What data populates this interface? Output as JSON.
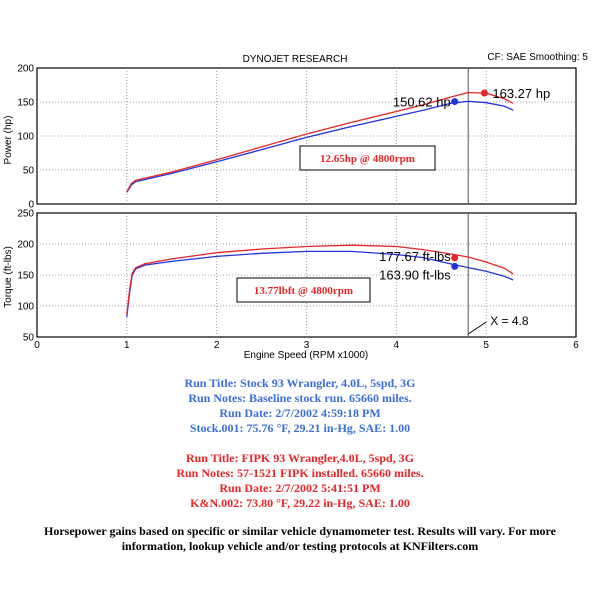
{
  "header": {
    "title": "DYNOJET RESEARCH",
    "settings": "CF: SAE  Smoothing: 5"
  },
  "chart_data": [
    {
      "type": "line",
      "title": "",
      "xlabel": "Engine Speed (RPM x1000)",
      "ylabel": "Power (hp)",
      "xlim": [
        0,
        6
      ],
      "ylim": [
        0,
        200
      ],
      "xticks": [
        0,
        1,
        2,
        3,
        4,
        5,
        6
      ],
      "yticks": [
        0,
        50,
        100,
        150,
        200
      ],
      "grid": true,
      "series": [
        {
          "color": "#2233dd",
          "x": [
            1.0,
            1.05,
            1.1,
            1.5,
            2.0,
            2.5,
            3.0,
            3.5,
            4.0,
            4.3,
            4.6,
            4.8,
            5.0,
            5.2,
            5.3
          ],
          "y": [
            17,
            28,
            33,
            45,
            62,
            80,
            98,
            114,
            129,
            138,
            148,
            151,
            149,
            144,
            138
          ]
        },
        {
          "color": "#e8262a",
          "x": [
            1.0,
            1.05,
            1.1,
            1.5,
            2.0,
            2.5,
            3.0,
            3.5,
            4.0,
            4.3,
            4.6,
            4.8,
            5.0,
            5.2,
            5.3
          ],
          "y": [
            18,
            30,
            35,
            47,
            65,
            84,
            103,
            120,
            136,
            146,
            157,
            164,
            163,
            155,
            148
          ]
        }
      ],
      "annotations": [
        {
          "text": "150.62 hp",
          "x": 4.65,
          "y": 150.62,
          "color": "#2233dd"
        },
        {
          "text": "163.27 hp",
          "x": 4.98,
          "y": 163.27,
          "color": "#e8262a"
        },
        {
          "text": "12.65hp @ 4800rpm",
          "boxed": true,
          "color": "#e8262a"
        }
      ]
    },
    {
      "type": "line",
      "title": "",
      "xlabel": "Engine Speed (RPM x1000)",
      "ylabel": "Torque (ft-lbs)",
      "xlim": [
        0,
        6
      ],
      "ylim": [
        50,
        250
      ],
      "xticks": [
        0,
        1,
        2,
        3,
        4,
        5,
        6
      ],
      "yticks": [
        50,
        100,
        150,
        200,
        250
      ],
      "grid": true,
      "series": [
        {
          "color": "#2233dd",
          "x": [
            1.0,
            1.03,
            1.06,
            1.1,
            1.2,
            1.5,
            2.0,
            2.5,
            3.0,
            3.5,
            4.0,
            4.3,
            4.6,
            4.8,
            5.0,
            5.2,
            5.3
          ],
          "y": [
            82,
            120,
            150,
            160,
            166,
            172,
            180,
            185,
            188,
            188,
            183,
            178,
            168,
            162,
            156,
            148,
            142
          ]
        },
        {
          "color": "#e8262a",
          "x": [
            1.0,
            1.03,
            1.06,
            1.1,
            1.2,
            1.5,
            2.0,
            2.5,
            3.0,
            3.5,
            4.0,
            4.3,
            4.6,
            4.8,
            5.0,
            5.2,
            5.3
          ],
          "y": [
            86,
            125,
            153,
            162,
            168,
            176,
            186,
            192,
            196,
            198,
            196,
            191,
            184,
            179,
            171,
            161,
            152
          ]
        }
      ],
      "annotations": [
        {
          "text": "177.67 ft-lbs",
          "x": 4.65,
          "y": 177.67,
          "color": "#e8262a"
        },
        {
          "text": "163.90 ft-lbs",
          "x": 4.65,
          "y": 163.9,
          "color": "#2233dd"
        },
        {
          "text": "13.77lbft @ 4800rpm",
          "boxed": true,
          "color": "#e8262a"
        }
      ]
    }
  ],
  "cursor": {
    "x": 4.8,
    "label": "X = 4.8"
  },
  "run_stock": {
    "title": "Run Title: Stock 93 Wrangler, 4.0L, 5spd, 3G",
    "notes": "Run Notes: Baseline stock run. 65660 miles.",
    "date": "Run Date: 2/7/2002 4:59:18 PM",
    "conditions": "Stock.001: 75.76 °F, 29.21 in-Hg, SAE: 1.00"
  },
  "run_fipk": {
    "title": "Run Title: FIPK 93 Wrangler,4.0L, 5spd, 3G",
    "notes": "Run Notes: 57-1521 FIPK installed. 65660 miles.",
    "date": "Run Date: 2/7/2002 5:41:51 PM",
    "conditions": "K&N.002: 73.80 °F, 29.22 in-Hg, SAE: 1.00"
  },
  "disclaimer": {
    "line1": "Horsepower gains based on specific or similar vehicle dynamometer test. Results will vary. For more",
    "line2": "information, lookup vehicle and/or testing protocols at KNFilters.com"
  },
  "colors": {
    "stock": "#2233dd",
    "fipk": "#e8262a",
    "text_stock": "#3a6fd8"
  }
}
